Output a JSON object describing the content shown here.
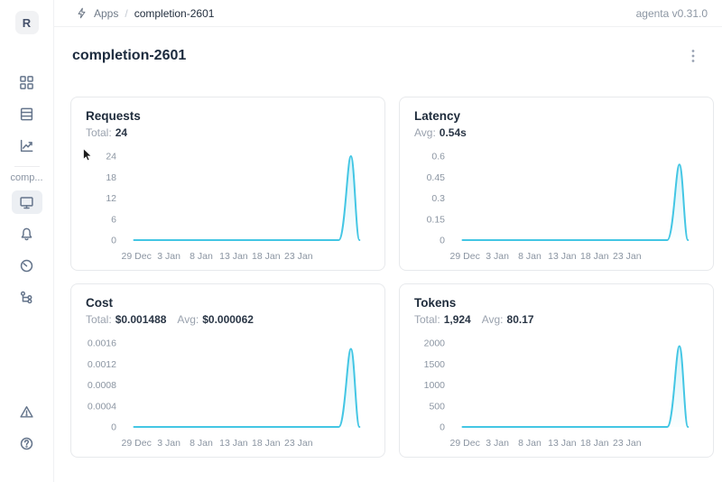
{
  "header": {
    "breadcrumb": {
      "section": "Apps",
      "separator": "/",
      "current": "completion-2601"
    },
    "version_label": "agenta v0.31.0"
  },
  "sidebar": {
    "workspace_initial": "R",
    "app_label": "comp...",
    "top_icons": [
      "apps-grid-icon",
      "table-rows-icon",
      "chart-trend-icon"
    ],
    "app_icons": [
      "monitor-icon",
      "bell-icon",
      "gauge-icon",
      "tree-structure-icon"
    ],
    "bottom_icons": [
      "alert-triangle-icon",
      "help-circle-icon"
    ],
    "selected_icon": "monitor-icon"
  },
  "page": {
    "title": "completion-2601"
  },
  "colors": {
    "accent_line": "#43c6e4",
    "text_dark": "#1e2b3b",
    "text_gray": "#9aa2ae",
    "border": "#e7e9ec"
  },
  "chart_data": [
    {
      "id": "requests",
      "type": "area",
      "title": "Requests",
      "stats": [
        {
          "label": "Total:",
          "value": "24"
        }
      ],
      "x_ticks": [
        "29 Dec",
        "3 Jan",
        "8 Jan",
        "13 Jan",
        "18 Jan",
        "23 Jan"
      ],
      "y_ticks": [
        0,
        6,
        12,
        18,
        24
      ],
      "y_tick_labels": [
        "0",
        "6",
        "12",
        "18",
        "24"
      ],
      "ylim": [
        0,
        24
      ],
      "grid": false,
      "legend": false,
      "line_color": "#43c6e4",
      "series": [
        {
          "name": "Requests",
          "baseline_value": 0,
          "peak_value": 24,
          "shape": "flat at 0 across range, single sharp spike near right end returning to 0"
        }
      ]
    },
    {
      "id": "latency",
      "type": "area",
      "title": "Latency",
      "stats": [
        {
          "label": "Avg:",
          "value": "0.54s"
        }
      ],
      "x_ticks": [
        "29 Dec",
        "3 Jan",
        "8 Jan",
        "13 Jan",
        "18 Jan",
        "23 Jan"
      ],
      "y_ticks": [
        0,
        0.15,
        0.3,
        0.45,
        0.6
      ],
      "y_tick_labels": [
        "0",
        "0.15",
        "0.3",
        "0.45",
        "0.6"
      ],
      "ylim": [
        0,
        0.6
      ],
      "grid": false,
      "legend": false,
      "line_color": "#43c6e4",
      "series": [
        {
          "name": "Latency",
          "baseline_value": 0,
          "peak_value": 0.54,
          "shape": "flat at 0 across range, single sharp spike near right end returning to 0"
        }
      ]
    },
    {
      "id": "cost",
      "type": "area",
      "title": "Cost",
      "stats": [
        {
          "label": "Total:",
          "value": "$0.001488"
        },
        {
          "label": "Avg:",
          "value": "$0.000062"
        }
      ],
      "x_ticks": [
        "29 Dec",
        "3 Jan",
        "8 Jan",
        "13 Jan",
        "18 Jan",
        "23 Jan"
      ],
      "y_ticks": [
        0,
        0.0004,
        0.0008,
        0.0012,
        0.0016
      ],
      "y_tick_labels": [
        "0",
        "0.0004",
        "0.0008",
        "0.0012",
        "0.0016"
      ],
      "ylim": [
        0,
        0.0016
      ],
      "grid": false,
      "legend": false,
      "line_color": "#43c6e4",
      "series": [
        {
          "name": "Cost",
          "baseline_value": 0,
          "peak_value": 0.001488,
          "shape": "flat at 0 across range, single sharp spike near right end returning to 0"
        }
      ]
    },
    {
      "id": "tokens",
      "type": "area",
      "title": "Tokens",
      "stats": [
        {
          "label": "Total:",
          "value": "1,924"
        },
        {
          "label": "Avg:",
          "value": "80.17"
        }
      ],
      "x_ticks": [
        "29 Dec",
        "3 Jan",
        "8 Jan",
        "13 Jan",
        "18 Jan",
        "23 Jan"
      ],
      "y_ticks": [
        0,
        500,
        1000,
        1500,
        2000
      ],
      "y_tick_labels": [
        "0",
        "500",
        "1000",
        "1500",
        "2000"
      ],
      "ylim": [
        0,
        2000
      ],
      "grid": false,
      "legend": false,
      "line_color": "#43c6e4",
      "series": [
        {
          "name": "Tokens",
          "baseline_value": 0,
          "peak_value": 1924,
          "shape": "flat at 0 across range, single sharp spike near right end returning to 0"
        }
      ]
    }
  ]
}
